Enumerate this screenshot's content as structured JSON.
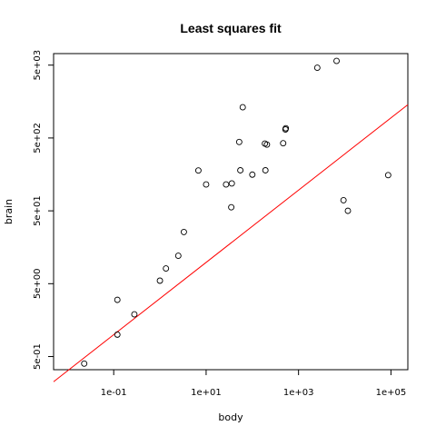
{
  "chart_data": {
    "type": "scatter",
    "title": "Least squares fit",
    "xlabel": "body",
    "ylabel": "brain",
    "x_scale": "log10",
    "y_scale": "log10",
    "xlim": [
      0.005,
      232000
    ],
    "ylim": [
      0.33,
      7200
    ],
    "x_ticks": [
      {
        "value": 0.1,
        "label": "1e-01"
      },
      {
        "value": 10,
        "label": "1e+01"
      },
      {
        "value": 1000,
        "label": "1e+03"
      },
      {
        "value": 100000,
        "label": "1e+05"
      }
    ],
    "y_ticks": [
      {
        "value": 0.5,
        "label": "5e-01"
      },
      {
        "value": 5,
        "label": "5e+00"
      },
      {
        "value": 50,
        "label": "5e+01"
      },
      {
        "value": 500,
        "label": "5e+02"
      },
      {
        "value": 5000,
        "label": "5e+03"
      }
    ],
    "grid": false,
    "legend": "none",
    "series": [
      {
        "points": [
          [
            0.023,
            0.4
          ],
          [
            0.12,
            1.0
          ],
          [
            0.12,
            3.0
          ],
          [
            0.28,
            1.9
          ],
          [
            1.0,
            5.5
          ],
          [
            1.35,
            8.1
          ],
          [
            2.5,
            12.1
          ],
          [
            3.3,
            25.6
          ],
          [
            6.8,
            179
          ],
          [
            10,
            115
          ],
          [
            27,
            115
          ],
          [
            35,
            56
          ],
          [
            36,
            119
          ],
          [
            52,
            440
          ],
          [
            55,
            180
          ],
          [
            62,
            1320
          ],
          [
            100,
            157
          ],
          [
            187,
            419
          ],
          [
            192,
            180
          ],
          [
            207,
            406
          ],
          [
            465,
            423
          ],
          [
            521,
            655
          ],
          [
            530,
            680
          ],
          [
            2547,
            4603
          ],
          [
            6654,
            5712
          ],
          [
            9400,
            70
          ],
          [
            11700,
            50
          ],
          [
            87000,
            154.5
          ]
        ]
      }
    ],
    "fit_line": {
      "intercept": 0.495,
      "slope": 0.496
    },
    "colors": {
      "points": "#000000",
      "fit_line": "#ff0000",
      "frame": "#000000"
    }
  }
}
